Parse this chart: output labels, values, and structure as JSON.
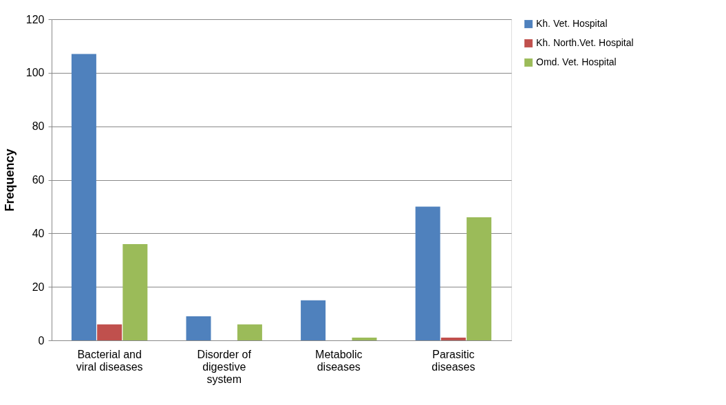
{
  "chart_data": {
    "type": "bar",
    "ylabel": "Frequency",
    "categories": [
      "Bacterial and viral diseases",
      "Disorder of digestive system",
      "Metabolic diseases",
      "Parasitic diseases"
    ],
    "series": [
      {
        "name": "Kh. Vet. Hospital",
        "color": "#4f81bd",
        "values": [
          107,
          9,
          15,
          50
        ]
      },
      {
        "name": "Kh. North.Vet. Hospital",
        "color": "#c0504d",
        "values": [
          6,
          0,
          0,
          1
        ]
      },
      {
        "name": "Omd. Vet. Hospital",
        "color": "#9bbb59",
        "values": [
          36,
          6,
          1,
          46
        ]
      }
    ],
    "ylim": [
      0,
      120
    ],
    "yticks": [
      0,
      20,
      40,
      60,
      80,
      100,
      120
    ],
    "grid": "y",
    "legend": "right"
  }
}
